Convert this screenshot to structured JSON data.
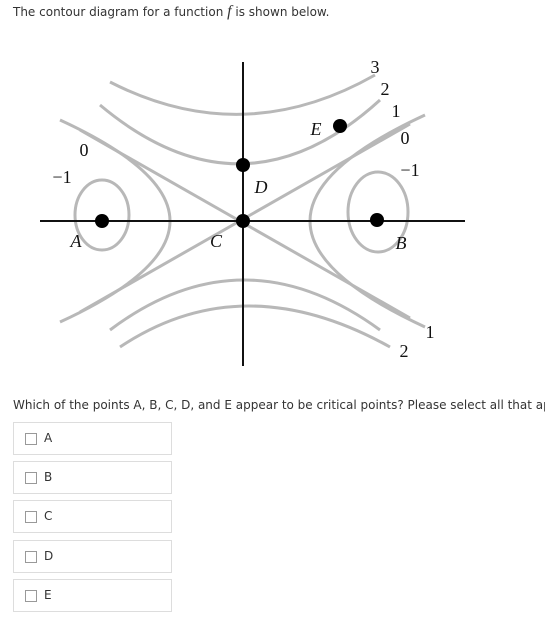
{
  "question": {
    "prefix": "The contour diagram for a function",
    "variable": "f",
    "suffix": "is shown below."
  },
  "diagram": {
    "contour_labels": [
      "3",
      "2",
      "1",
      "0",
      "−1",
      "0",
      "−1",
      "1",
      "2"
    ],
    "points": [
      "A",
      "B",
      "C",
      "D",
      "E"
    ]
  },
  "prompt": "Which of the points A, B, C, D, and E appear to be critical points? Please select all that apply.",
  "options": [
    "A",
    "B",
    "C",
    "D",
    "E"
  ]
}
